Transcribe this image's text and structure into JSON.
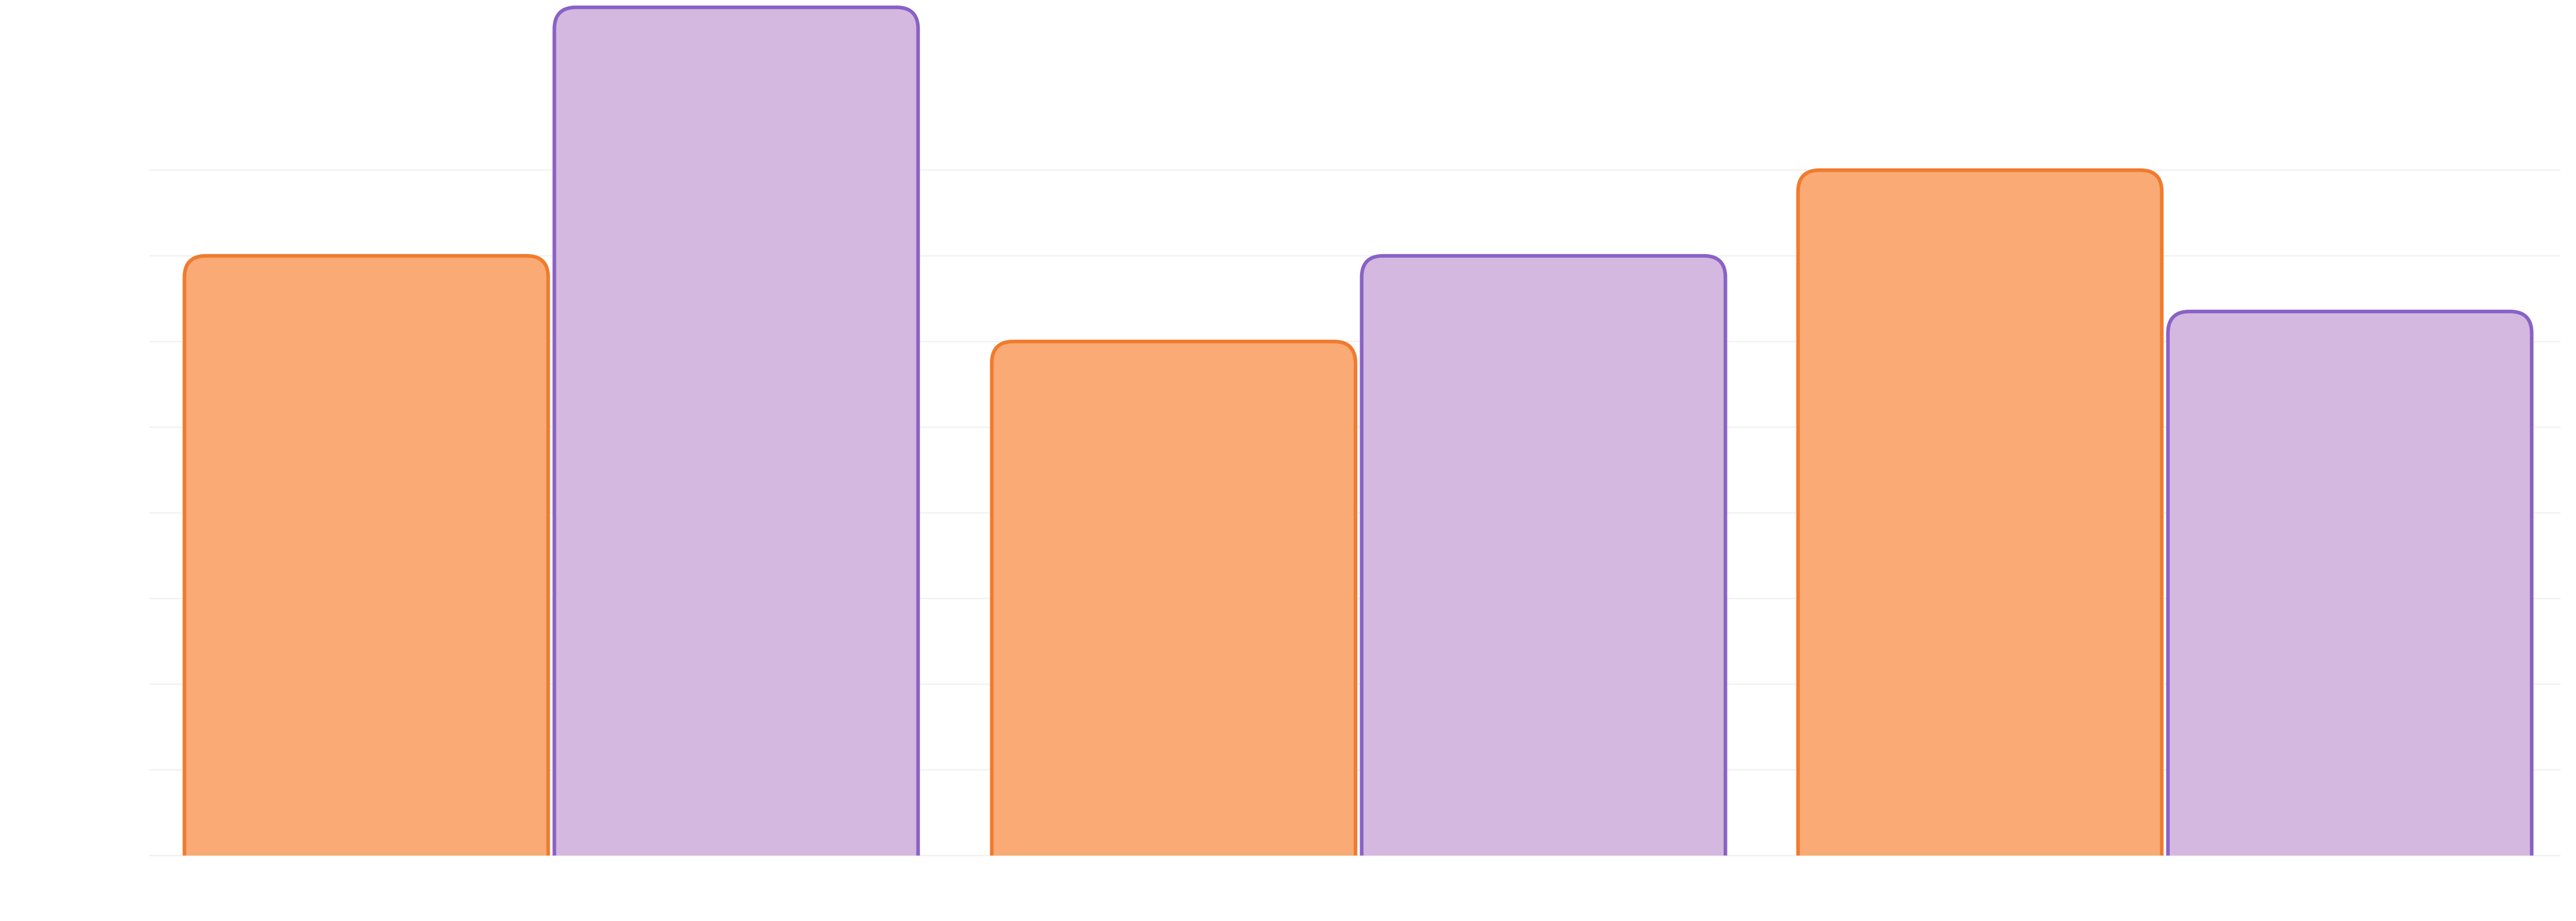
{
  "chart_data": {
    "type": "bar",
    "categories": [
      "",
      "",
      ""
    ],
    "series": [
      {
        "values": [
          70,
          60,
          80
        ]
      },
      {
        "values": [
          99,
          70,
          63.5
        ]
      }
    ],
    "ylim": [
      0,
      99.5
    ],
    "yticks": [
      0,
      10,
      20,
      30,
      40,
      50,
      60,
      70,
      80
    ],
    "grid": true,
    "legend": "none",
    "colors": {
      "series_fill": [
        "#f9aa75",
        "#d4b8df"
      ],
      "series_stroke": [
        "#f07b2e",
        "#8a62c6"
      ],
      "gridline": "#f2f2f2",
      "background": "#ffffff"
    }
  }
}
